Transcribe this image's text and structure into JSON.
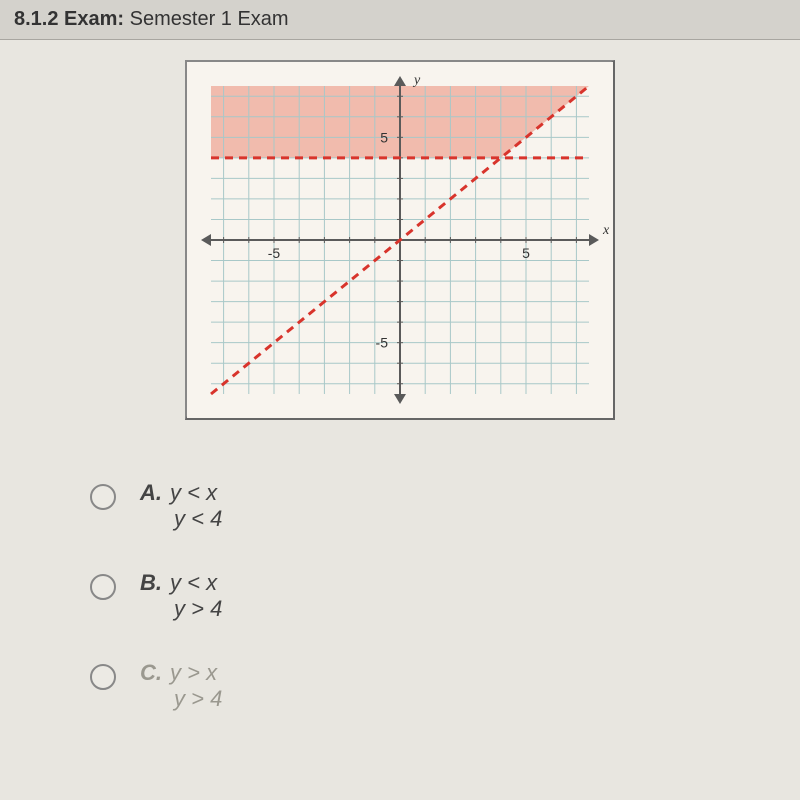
{
  "header": {
    "section": "8.1.2",
    "exam_label": "Exam:",
    "title": "Semester 1 Exam"
  },
  "graph": {
    "type": "inequality_region",
    "background_color": "#f8f4ee",
    "grid_color": "#a8c8c8",
    "axis_color": "#5a5a5a",
    "shade_color": "rgba(235,140,120,0.55)",
    "dash_color": "#d8342c",
    "xlim": [
      -7.5,
      7.5
    ],
    "ylim": [
      -7.5,
      7.5
    ],
    "xtick_labels": [
      {
        "v": -5,
        "t": "-5"
      },
      {
        "v": 5,
        "t": "5"
      }
    ],
    "ytick_labels": [
      {
        "v": 5,
        "t": "5"
      },
      {
        "v": -5,
        "t": "-5"
      }
    ],
    "y_axis_label": "y",
    "x_axis_label": "x",
    "horizontal_dash_y": 4,
    "diagonal_line": {
      "slope": 1,
      "intercept": 0
    },
    "shaded_region": "y>4 AND y>x",
    "dash_pattern": "8,6",
    "grid_step": 1,
    "tick_font_size": 14,
    "axis_label_font_size": 14
  },
  "answers": {
    "items": [
      {
        "letter": "A.",
        "line1": "y < x",
        "line2": "y < 4",
        "faded": false
      },
      {
        "letter": "B.",
        "line1": "y < x",
        "line2": "y > 4",
        "faded": false
      },
      {
        "letter": "C.",
        "line1": "y > x",
        "line2": "y > 4",
        "faded": true
      }
    ]
  }
}
